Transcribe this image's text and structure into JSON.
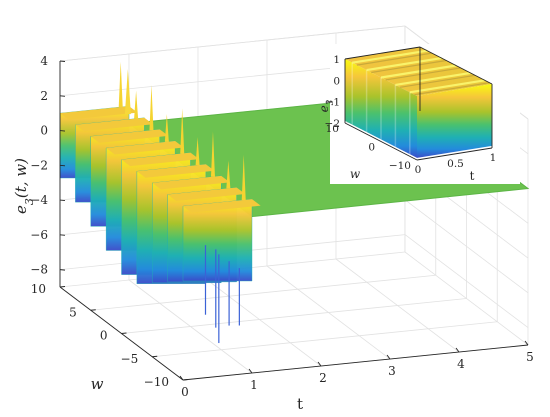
{
  "chart_data": {
    "type": "surface3d",
    "title": "",
    "xlabel": "t",
    "ylabel": "w",
    "zlabel_parts": [
      "e",
      "3",
      "(t, w)"
    ],
    "xlim": [
      0,
      5
    ],
    "ylim": [
      -10,
      10
    ],
    "zlim": [
      -9,
      4
    ],
    "xticks": [
      "0",
      "1",
      "2",
      "3",
      "4",
      "5"
    ],
    "yticks": [
      "-10",
      "-5",
      "0",
      "5",
      "10"
    ],
    "zticks": [
      "-8",
      "-6",
      "-4",
      "-2",
      "0",
      "2",
      "4"
    ],
    "grid": true,
    "colormap": "parula",
    "surface_value_after_t1": 0,
    "transient_t_range": [
      0,
      1
    ],
    "transient_rows_w": [
      10,
      7.5,
      5,
      2.5,
      0,
      -2.5,
      -5,
      -7.5,
      -10
    ],
    "transient_min": -8.7,
    "transient_max": 3.6,
    "inset": {
      "xlabel": "t",
      "ylabel": "w",
      "zlabel_parts": [
        "e",
        "3"
      ],
      "xlim": [
        0,
        1
      ],
      "ylim": [
        -10,
        10
      ],
      "zlim": [
        -2,
        1
      ],
      "xticks": [
        "0",
        "0.5",
        "1"
      ],
      "yticks": [
        "-10",
        "0",
        "10"
      ],
      "zticks": [
        "1",
        "0",
        "-1",
        "-2"
      ],
      "ridges_w": [
        -8,
        -4,
        0,
        4,
        8
      ]
    }
  }
}
